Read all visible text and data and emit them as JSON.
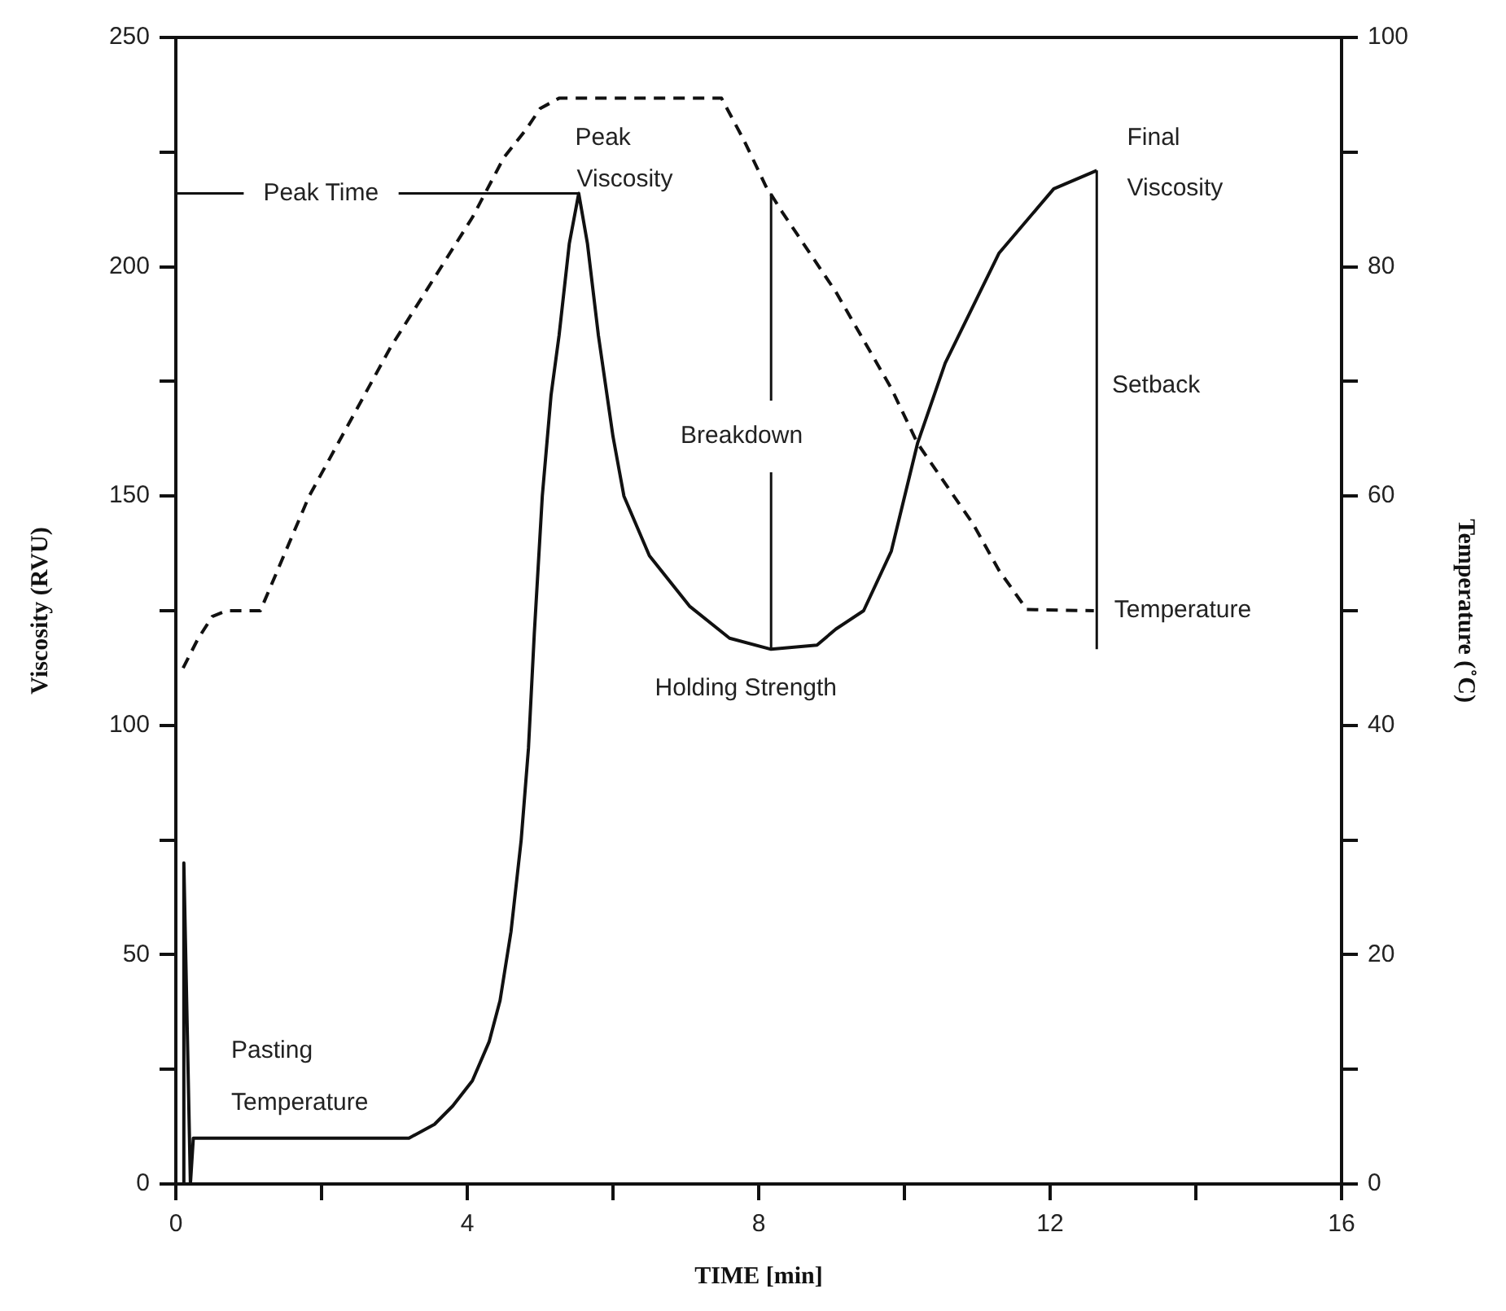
{
  "chart_data": {
    "type": "line",
    "xlabel": "TIME [min]",
    "ylabel": "Viscosity (RVU)",
    "y2label": "Temperature (˚C)",
    "xlim": [
      0,
      16
    ],
    "xticks": [
      0,
      {
        "value": 2,
        "label": null
      },
      4,
      {
        "value": 6,
        "label": null
      },
      8,
      {
        "value": 10,
        "label": null
      },
      12,
      {
        "value": 14,
        "label": null
      },
      16
    ],
    "ylim": [
      0,
      250
    ],
    "yticks": [
      0,
      {
        "value": 25,
        "label": null
      },
      50,
      {
        "value": 75,
        "label": null
      },
      100,
      {
        "value": 125,
        "label": null
      },
      150,
      {
        "value": 175,
        "label": null
      },
      200,
      {
        "value": 225,
        "label": null
      },
      250
    ],
    "y2lim": [
      0,
      100
    ],
    "y2ticks": [
      0,
      {
        "value": 10,
        "label": null
      },
      20,
      {
        "value": 30,
        "label": null
      },
      40,
      {
        "value": 50,
        "label": null
      },
      60,
      {
        "value": 70,
        "label": null
      },
      80,
      {
        "value": 90,
        "label": null
      },
      100
    ],
    "grid": false,
    "legend": false,
    "marker": "none",
    "series": [
      {
        "color": "#111111",
        "line_style": "solid",
        "x": [
          0.1,
          0.11,
          0.2,
          0.24,
          1,
          2,
          3.2,
          3.55,
          3.8,
          4.07,
          4.3,
          4.45,
          4.6,
          4.74,
          4.84,
          4.92,
          5.03,
          5.15,
          5.26,
          5.4,
          5.53,
          5.65,
          5.8,
          6.0,
          6.15,
          6.5,
          7.05,
          7.6,
          8.17,
          8.8,
          9.06,
          9.44,
          9.82,
          10.18,
          10.56,
          11.3,
          12.05,
          12.64
        ],
        "values": [
          0,
          70,
          0,
          10,
          10,
          10,
          10,
          13,
          17,
          22.5,
          31,
          40,
          55,
          75,
          95,
          120,
          150,
          172,
          185,
          205,
          216,
          205,
          185,
          163,
          150,
          137,
          126,
          119,
          116.6,
          117.5,
          121,
          125,
          138,
          161.5,
          179,
          203,
          217,
          221
        ]
      },
      {
        "color": "#111111",
        "line_style": "dashed",
        "axis": "y2",
        "x": [
          0.1,
          0.3,
          0.5,
          0.7,
          1.16,
          1.83,
          2.95,
          4.07,
          4.5,
          4.81,
          5.0,
          5.26,
          7.49,
          7.8,
          8.1,
          8.32,
          9.06,
          9.82,
          10.18,
          10.94,
          11.3,
          11.68,
          12.6
        ],
        "values": [
          45,
          47.5,
          49.5,
          50,
          50,
          60,
          73,
          84.3,
          89.5,
          92,
          93.8,
          94.7,
          94.7,
          91,
          87,
          84.8,
          77.8,
          69.4,
          64.6,
          57.6,
          53.5,
          50.1,
          50
        ]
      }
    ],
    "annotations": [
      {
        "text": "Peak Time",
        "x": 5.53,
        "y": 216
      },
      "Peak",
      "Viscosity",
      "Final",
      "Viscosity",
      "Setback",
      {
        "text": "Breakdown",
        "x": 8.17,
        "y": 116.6
      },
      "Holding Strength",
      "Pasting",
      "Temperature",
      "Temperature"
    ]
  }
}
